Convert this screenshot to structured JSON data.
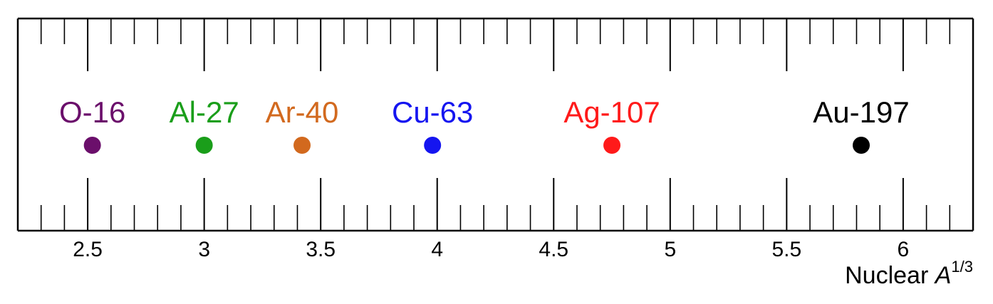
{
  "chart_data": {
    "type": "scatter",
    "title": "",
    "xlabel_text": "Nuclear ",
    "xlabel_var": "A",
    "xlabel_sup": "1/3",
    "xlim": [
      2.2,
      6.3
    ],
    "x_ticks": [
      2.5,
      3,
      3.5,
      4,
      4.5,
      5,
      5.5,
      6
    ],
    "x_tick_labels": [
      "2.5",
      "3",
      "3.5",
      "4",
      "4.5",
      "5",
      "5.5",
      "6"
    ],
    "minor_tick_step": 0.1,
    "grid": false,
    "points": [
      {
        "label": "O-16",
        "x": 2.52,
        "color": "#6b0f6b"
      },
      {
        "label": "Al-27",
        "x": 3.0,
        "color": "#1a9e1a"
      },
      {
        "label": "Ar-40",
        "x": 3.42,
        "color": "#d2691e"
      },
      {
        "label": "Cu-63",
        "x": 3.98,
        "color": "#1515f0"
      },
      {
        "label": "Ag-107",
        "x": 4.75,
        "color": "#ff1a1a"
      },
      {
        "label": "Au-197",
        "x": 5.82,
        "color": "#000000"
      }
    ]
  }
}
